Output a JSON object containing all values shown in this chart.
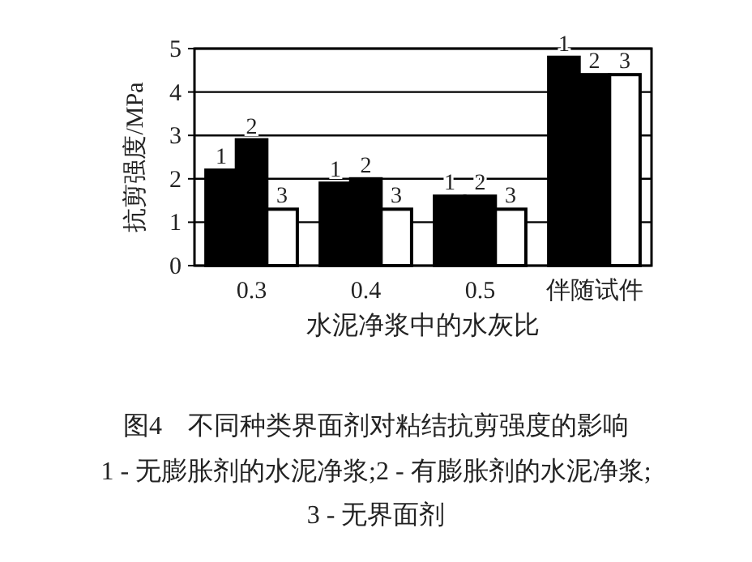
{
  "chart_data": {
    "type": "bar",
    "title": "图4　不同种类界面剂对粘结抗剪强度的影响",
    "annotations": [
      "1 - 无膨胀剂的水泥净浆;2 - 有膨胀剂的水泥净浆;",
      "3 - 无界面剂"
    ],
    "xlabel": "水泥净浆中的水灰比",
    "ylabel": "抗剪强度/MPa",
    "categories": [
      "0.3",
      "0.4",
      "0.5",
      "伴随试件"
    ],
    "series": [
      {
        "name": "1",
        "color": "#000000",
        "values": [
          2.2,
          1.9,
          1.6,
          4.8
        ]
      },
      {
        "name": "2",
        "color": "#000000",
        "values": [
          2.9,
          2.0,
          1.6,
          4.4
        ]
      },
      {
        "name": "3",
        "color": "#ffffff",
        "values": [
          1.3,
          1.3,
          1.3,
          4.4
        ]
      }
    ],
    "ylim": [
      0,
      5
    ],
    "yticks": [
      0,
      1,
      2,
      3,
      4,
      5
    ],
    "grid": "y"
  }
}
